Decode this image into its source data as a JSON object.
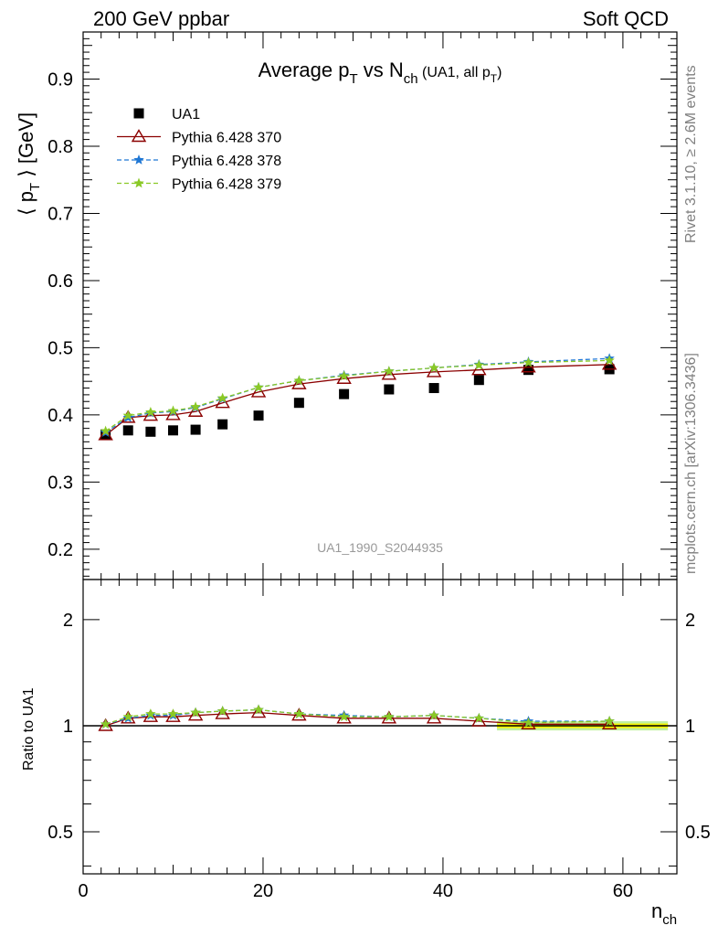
{
  "header": {
    "left": "200 GeV ppbar",
    "right": "Soft QCD"
  },
  "side_labels": {
    "rivet": "Rivet 3.1.10, ≥ 2.6M events",
    "mcplots": "mcplots.cern.ch [arXiv:1306.3436]"
  },
  "watermark": "UA1_1990_S2044935",
  "chart_data": [
    {
      "type": "scatter",
      "title": {
        "main": "Average p",
        "sub1": "T",
        "mid": " vs N",
        "sub2": "ch",
        "tail": " (UA1, all p",
        "sub3": "T",
        "end": ")"
      },
      "ylabel": {
        "pre": "⟨ p",
        "sub": "T",
        "post": " ⟩ [GeV]"
      },
      "xlim": [
        0,
        66
      ],
      "ylim": [
        0.155,
        0.97
      ],
      "yticks": [
        "0.2",
        "0.3",
        "0.4",
        "0.5",
        "0.6",
        "0.7",
        "0.8",
        "0.9"
      ],
      "legend_position": "top-left",
      "x": [
        2.5,
        5,
        7.5,
        10,
        12.5,
        15.5,
        19.5,
        24,
        29,
        34,
        39,
        44,
        49.5,
        58.5
      ],
      "series": [
        {
          "name": "UA1",
          "marker": "square",
          "color": "#000000",
          "values": [
            0.371,
            0.377,
            0.375,
            0.377,
            0.378,
            0.386,
            0.399,
            0.418,
            0.431,
            0.438,
            0.44,
            0.452,
            0.467,
            0.468
          ]
        },
        {
          "name": "Pythia 6.428 370",
          "marker": "triangle",
          "color": "#8b0000",
          "line": "solid",
          "values": [
            0.37,
            0.396,
            0.399,
            0.4,
            0.405,
            0.418,
            0.434,
            0.446,
            0.454,
            0.46,
            0.464,
            0.467,
            0.471,
            0.475
          ]
        },
        {
          "name": "Pythia 6.428 378",
          "marker": "star",
          "color": "#1f77d4",
          "line": "dashed",
          "values": [
            0.374,
            0.396,
            0.403,
            0.405,
            0.411,
            0.424,
            0.441,
            0.451,
            0.459,
            0.465,
            0.47,
            0.475,
            0.479,
            0.484
          ]
        },
        {
          "name": "Pythia 6.428 379",
          "marker": "star",
          "color": "#8ac926",
          "line": "dashed",
          "values": [
            0.376,
            0.399,
            0.404,
            0.406,
            0.412,
            0.425,
            0.441,
            0.451,
            0.458,
            0.465,
            0.47,
            0.474,
            0.478,
            0.481
          ]
        }
      ]
    },
    {
      "type": "scatter",
      "ylabel": "Ratio to UA1",
      "xlabel": {
        "main": "n",
        "sub": "ch"
      },
      "xlim": [
        0,
        66
      ],
      "ylim": [
        0.38,
        2.6
      ],
      "log_y": true,
      "xticks": [
        "0",
        "20",
        "40",
        "60"
      ],
      "yticks": [
        "0.5",
        "1",
        "2"
      ],
      "x": [
        2.5,
        5,
        7.5,
        10,
        12.5,
        15.5,
        19.5,
        24,
        29,
        34,
        39,
        44,
        49.5,
        58.5
      ],
      "series": [
        {
          "name": "Pythia 6.428 370",
          "values": [
            1.0,
            1.05,
            1.06,
            1.06,
            1.07,
            1.08,
            1.09,
            1.07,
            1.05,
            1.05,
            1.05,
            1.03,
            1.01,
            1.01
          ]
        },
        {
          "name": "Pythia 6.428 378",
          "values": [
            1.01,
            1.05,
            1.07,
            1.07,
            1.09,
            1.1,
            1.11,
            1.08,
            1.07,
            1.06,
            1.07,
            1.05,
            1.03,
            1.03
          ]
        },
        {
          "name": "Pythia 6.428 379",
          "values": [
            1.01,
            1.06,
            1.08,
            1.08,
            1.09,
            1.1,
            1.11,
            1.08,
            1.06,
            1.06,
            1.07,
            1.05,
            1.02,
            1.03
          ]
        }
      ],
      "uncertainty_band": {
        "x": [
          46,
          65
        ],
        "inner": [
          0.985,
          1.015
        ],
        "outer": [
          0.97,
          1.03
        ],
        "inner_color": "#f5f500",
        "outer_color": "#c0f0a0"
      }
    }
  ]
}
